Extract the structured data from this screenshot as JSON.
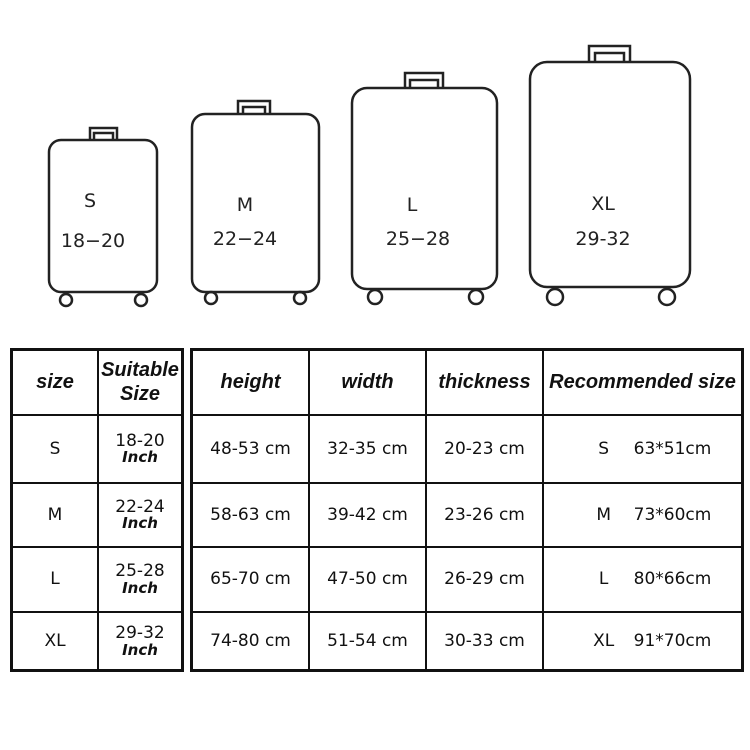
{
  "suitcases": [
    {
      "size": "S",
      "range": "18−20"
    },
    {
      "size": "M",
      "range": "22−24"
    },
    {
      "size": "L",
      "range": "25−28"
    },
    {
      "size": "XL",
      "range": "29-32"
    }
  ],
  "left_table": {
    "headers": [
      "size",
      "Suitable Size"
    ],
    "unit": "Inch",
    "rows": [
      {
        "size": "S",
        "range": "18-20"
      },
      {
        "size": "M",
        "range": "22-24"
      },
      {
        "size": "L",
        "range": "25-28"
      },
      {
        "size": "XL",
        "range": "29-32"
      }
    ]
  },
  "right_table": {
    "headers": [
      "height",
      "width",
      "thickness",
      "Recommended size"
    ],
    "rows": [
      {
        "height": "48-53 cm",
        "width": "32-35 cm",
        "thickness": "20-23 cm",
        "rec_size": "S",
        "rec_dim": "63*51cm"
      },
      {
        "height": "58-63 cm",
        "width": "39-42 cm",
        "thickness": "23-26 cm",
        "rec_size": "M",
        "rec_dim": "73*60cm"
      },
      {
        "height": "65-70 cm",
        "width": "47-50 cm",
        "thickness": "26-29 cm",
        "rec_size": "L",
        "rec_dim": "80*66cm"
      },
      {
        "height": "74-80 cm",
        "width": "51-54 cm",
        "thickness": "30-33 cm",
        "rec_size": "XL",
        "rec_dim": "91*70cm"
      }
    ]
  }
}
